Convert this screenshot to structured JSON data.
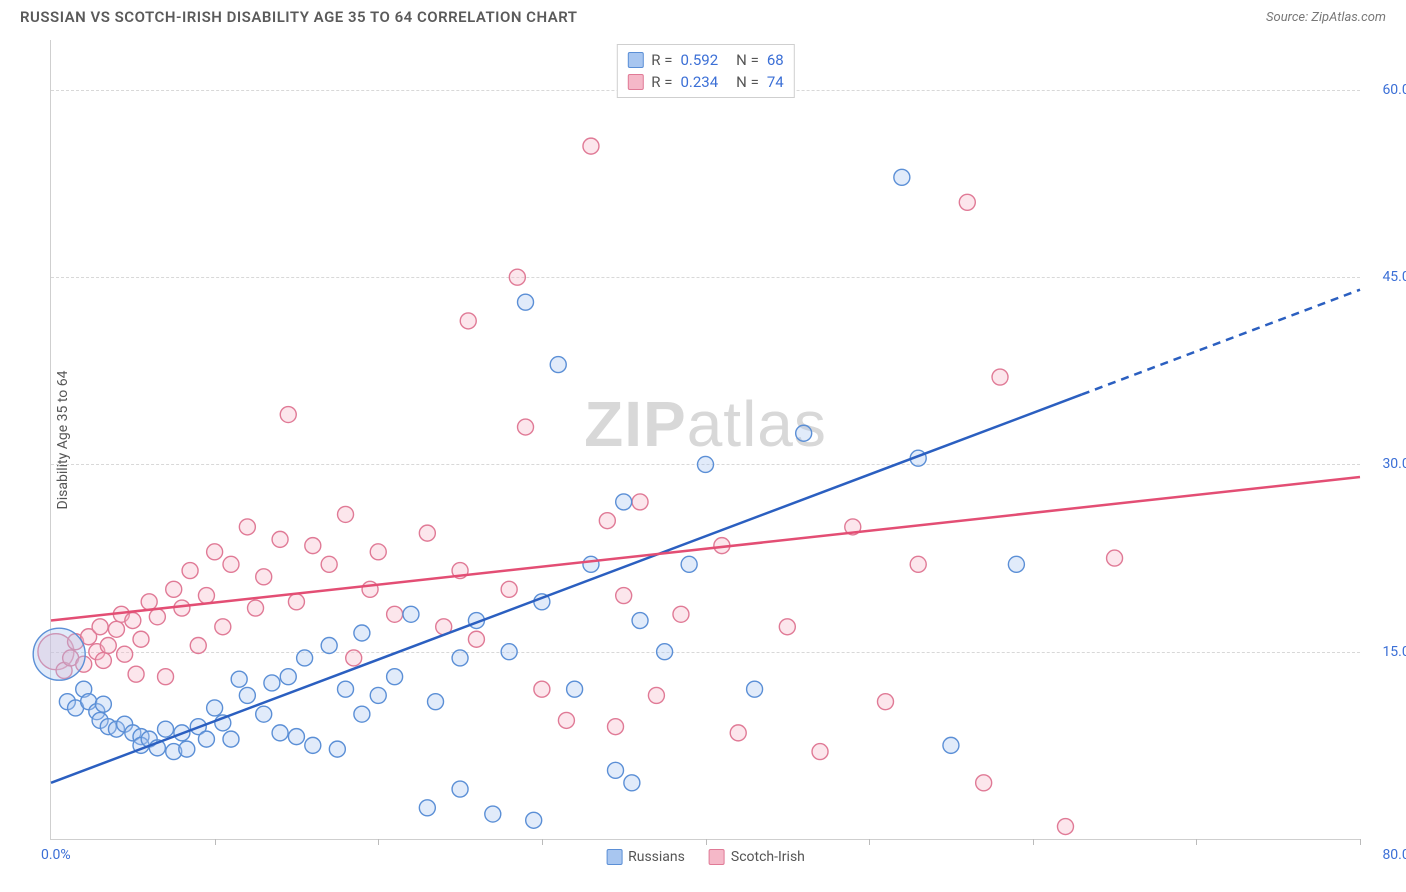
{
  "header": {
    "title": "RUSSIAN VS SCOTCH-IRISH DISABILITY AGE 35 TO 64 CORRELATION CHART",
    "source": "Source: ZipAtlas.com"
  },
  "watermark": {
    "prefix": "ZIP",
    "suffix": "atlas"
  },
  "chart": {
    "type": "scatter",
    "y_label": "Disability Age 35 to 64",
    "background_color": "#ffffff",
    "grid_color": "#d8d8d8",
    "axis_color": "#cfcfcf",
    "tick_label_color": "#3b6fd6",
    "x_range": [
      0,
      80
    ],
    "y_range": [
      0,
      64
    ],
    "x_ticks": [
      0,
      10,
      20,
      30,
      40,
      50,
      60,
      70,
      80
    ],
    "y_ticks": [
      15,
      30,
      45,
      60
    ],
    "y_tick_labels": [
      "15.0%",
      "30.0%",
      "45.0%",
      "60.0%"
    ],
    "x_min_label": "0.0%",
    "x_max_label": "80.0%",
    "marker_radius": 8,
    "marker_fill_opacity": 0.35,
    "marker_stroke_width": 1.4,
    "big_marker_radius": 26,
    "series": [
      {
        "name": "Russians",
        "color_fill": "#a8c6f0",
        "color_stroke": "#5b8fd6",
        "line_color": "#2b5fc0",
        "trend_line": {
          "x1": 0,
          "y1": 4.5,
          "x2": 80,
          "y2": 44
        },
        "trend_solid_until_x": 63,
        "R": "0.592",
        "N": "68",
        "points": [
          [
            0.5,
            14.8,
            26
          ],
          [
            1,
            11
          ],
          [
            1.5,
            10.5
          ],
          [
            2,
            12
          ],
          [
            2.3,
            11
          ],
          [
            2.8,
            10.2
          ],
          [
            3,
            9.5
          ],
          [
            3.2,
            10.8
          ],
          [
            3.5,
            9
          ],
          [
            4,
            8.8
          ],
          [
            4.5,
            9.2
          ],
          [
            5,
            8.5
          ],
          [
            5.5,
            8.2
          ],
          [
            5.5,
            7.5
          ],
          [
            6,
            8
          ],
          [
            6.5,
            7.3
          ],
          [
            7,
            8.8
          ],
          [
            7.5,
            7
          ],
          [
            8,
            8.5
          ],
          [
            8.3,
            7.2
          ],
          [
            9,
            9
          ],
          [
            9.5,
            8
          ],
          [
            10,
            10.5
          ],
          [
            10.5,
            9.3
          ],
          [
            11,
            8
          ],
          [
            11.5,
            12.8
          ],
          [
            12,
            11.5
          ],
          [
            13,
            10
          ],
          [
            13.5,
            12.5
          ],
          [
            14,
            8.5
          ],
          [
            14.5,
            13
          ],
          [
            15,
            8.2
          ],
          [
            15.5,
            14.5
          ],
          [
            16,
            7.5
          ],
          [
            17,
            15.5
          ],
          [
            17.5,
            7.2
          ],
          [
            18,
            12
          ],
          [
            19,
            10
          ],
          [
            19,
            16.5
          ],
          [
            20,
            11.5
          ],
          [
            21,
            13
          ],
          [
            22,
            18
          ],
          [
            23,
            2.5
          ],
          [
            23.5,
            11
          ],
          [
            25,
            14.5
          ],
          [
            25,
            4
          ],
          [
            26,
            17.5
          ],
          [
            27,
            2
          ],
          [
            28,
            15
          ],
          [
            29,
            43
          ],
          [
            29.5,
            1.5
          ],
          [
            30,
            19
          ],
          [
            31,
            38
          ],
          [
            32,
            12
          ],
          [
            33,
            22
          ],
          [
            34.5,
            5.5
          ],
          [
            35,
            27
          ],
          [
            35.5,
            4.5
          ],
          [
            36,
            17.5
          ],
          [
            37.5,
            15
          ],
          [
            39,
            22
          ],
          [
            40,
            30
          ],
          [
            43,
            12
          ],
          [
            46,
            32.5
          ],
          [
            52,
            53
          ],
          [
            53,
            30.5
          ],
          [
            55,
            7.5
          ],
          [
            59,
            22
          ]
        ]
      },
      {
        "name": "Scotch-Irish",
        "color_fill": "#f5b8c8",
        "color_stroke": "#e07a96",
        "line_color": "#e34e74",
        "trend_line": {
          "x1": 0,
          "y1": 17.5,
          "x2": 80,
          "y2": 29
        },
        "R": "0.234",
        "N": "74",
        "points": [
          [
            0.3,
            15,
            18
          ],
          [
            0.8,
            13.5
          ],
          [
            1.2,
            14.5
          ],
          [
            1.5,
            15.8
          ],
          [
            2,
            14
          ],
          [
            2.3,
            16.2
          ],
          [
            2.8,
            15
          ],
          [
            3,
            17
          ],
          [
            3.2,
            14.3
          ],
          [
            3.5,
            15.5
          ],
          [
            4,
            16.8
          ],
          [
            4.3,
            18
          ],
          [
            4.5,
            14.8
          ],
          [
            5,
            17.5
          ],
          [
            5.2,
            13.2
          ],
          [
            5.5,
            16
          ],
          [
            6,
            19
          ],
          [
            6.5,
            17.8
          ],
          [
            7,
            13
          ],
          [
            7.5,
            20
          ],
          [
            8,
            18.5
          ],
          [
            8.5,
            21.5
          ],
          [
            9,
            15.5
          ],
          [
            9.5,
            19.5
          ],
          [
            10,
            23
          ],
          [
            10.5,
            17
          ],
          [
            11,
            22
          ],
          [
            12,
            25
          ],
          [
            12.5,
            18.5
          ],
          [
            13,
            21
          ],
          [
            14,
            24
          ],
          [
            14.5,
            34
          ],
          [
            15,
            19
          ],
          [
            16,
            23.5
          ],
          [
            17,
            22
          ],
          [
            18,
            26
          ],
          [
            18.5,
            14.5
          ],
          [
            19.5,
            20
          ],
          [
            20,
            23
          ],
          [
            21,
            18
          ],
          [
            23,
            24.5
          ],
          [
            24,
            17
          ],
          [
            25,
            21.5
          ],
          [
            25.5,
            41.5
          ],
          [
            26,
            16
          ],
          [
            28,
            20
          ],
          [
            28.5,
            45
          ],
          [
            29,
            33
          ],
          [
            30,
            12
          ],
          [
            31.5,
            9.5
          ],
          [
            33,
            55.5
          ],
          [
            34,
            25.5
          ],
          [
            34.5,
            9
          ],
          [
            35,
            19.5
          ],
          [
            36,
            27
          ],
          [
            37,
            11.5
          ],
          [
            38.5,
            18
          ],
          [
            41,
            23.5
          ],
          [
            42,
            8.5
          ],
          [
            45,
            17
          ],
          [
            47,
            7
          ],
          [
            49,
            25
          ],
          [
            51,
            11
          ],
          [
            53,
            22
          ],
          [
            56,
            51
          ],
          [
            57,
            4.5
          ],
          [
            58,
            37
          ],
          [
            62,
            1
          ],
          [
            65,
            22.5
          ]
        ]
      }
    ]
  },
  "legend_bottom": {
    "items": [
      {
        "label": "Russians",
        "fill": "#a8c6f0",
        "stroke": "#5b8fd6"
      },
      {
        "label": "Scotch-Irish",
        "fill": "#f5b8c8",
        "stroke": "#e07a96"
      }
    ]
  }
}
